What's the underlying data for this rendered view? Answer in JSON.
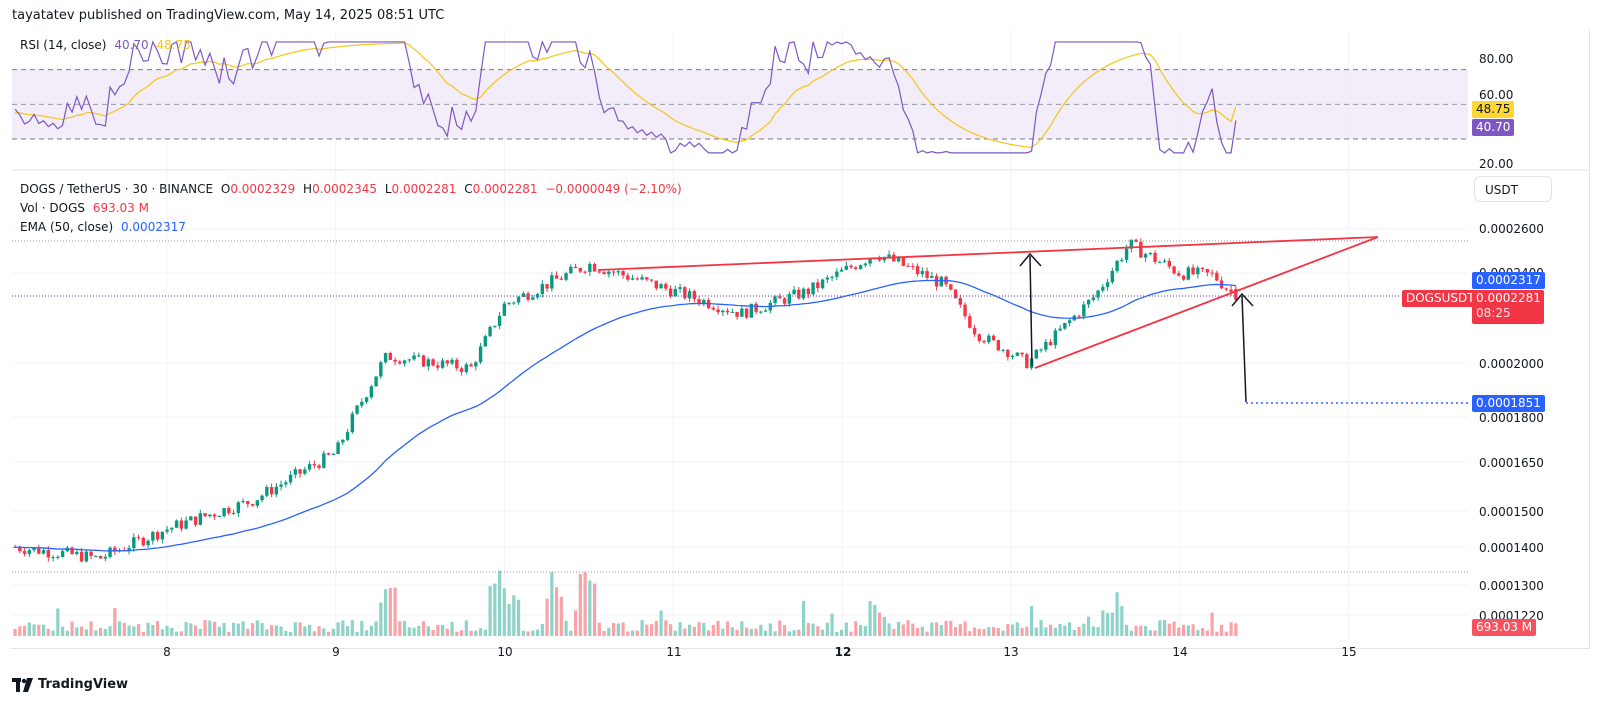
{
  "header": {
    "published": "tayatatev published on TradingView.com, May 14, 2025 08:51 UTC"
  },
  "rsi": {
    "label": "RSI (14, close)",
    "value": "40.70",
    "ma_value": "48.75",
    "axis": [
      "80.00",
      "60.00",
      "20.00"
    ],
    "tag_ma": "48.75",
    "tag_rsi": "40.70",
    "colors": {
      "rsi": "#7e57c2",
      "ma": "#f5c518",
      "band": "#ede7f6"
    }
  },
  "main": {
    "symbol": "DOGS / TetherUS · 30 · BINANCE",
    "ohlc": {
      "o_label": "O",
      "o": "0.0002329",
      "h_label": "H",
      "h": "0.0002345",
      "l_label": "L",
      "l": "0.0002281",
      "c_label": "C",
      "c": "0.0002281",
      "change": "−0.0000049 (−2.10%)"
    },
    "vol_label": "Vol · DOGS",
    "vol_value": "693.03 M",
    "ema_label": "EMA (50, close)",
    "ema_value": "0.0002317",
    "currency_button": "USDT",
    "price_axis": [
      "0.0002600",
      "0.0002400",
      "0.0002000",
      "0.0001800",
      "0.0001650",
      "0.0001500",
      "0.0001400",
      "0.0001300",
      "0.0001220"
    ],
    "tags": {
      "ema": "0.0002317",
      "symbol": "DOGSUSDT",
      "last_price": "0.0002281",
      "countdown": "08:25",
      "target": "0.0001851",
      "volume": "693.03 M"
    },
    "colors": {
      "up": "#089981",
      "down": "#f23645",
      "ema": "#2962ff",
      "trendline": "#f23645"
    }
  },
  "x_axis": [
    "8",
    "9",
    "10",
    "11",
    "12",
    "13",
    "14",
    "15"
  ],
  "footer": {
    "brand": "TradingView"
  },
  "chart_data": [
    {
      "type": "line",
      "title": "RSI (14, close)",
      "ylim": [
        15,
        90
      ],
      "bands": {
        "upper": 70,
        "middle": 50,
        "lower": 30
      },
      "series": [
        {
          "name": "RSI",
          "last": 40.7
        },
        {
          "name": "RSI MA",
          "last": 48.75
        }
      ],
      "x": [
        "8",
        "9",
        "10",
        "11",
        "12",
        "13",
        "14",
        "15"
      ]
    },
    {
      "type": "candlestick",
      "title": "DOGS / TetherUS · 30 · BINANCE",
      "ylabel": "USDT",
      "x": [
        "8",
        "9",
        "10",
        "11",
        "12",
        "13",
        "14",
        "15"
      ],
      "ylim": [
        0.000122,
        0.00027
      ],
      "approx_path": [
        {
          "day": "7.1",
          "price": 0.00014
        },
        {
          "day": "7.6",
          "price": 0.000137
        },
        {
          "day": "8.0",
          "price": 0.000145
        },
        {
          "day": "8.5",
          "price": 0.000153
        },
        {
          "day": "9.0",
          "price": 0.000168
        },
        {
          "day": "9.3",
          "price": 0.000203
        },
        {
          "day": "9.8",
          "price": 0.000198
        },
        {
          "day": "10.0",
          "price": 0.000226
        },
        {
          "day": "10.5",
          "price": 0.000244
        },
        {
          "day": "11.0",
          "price": 0.000232
        },
        {
          "day": "11.4",
          "price": 0.000222
        },
        {
          "day": "11.8",
          "price": 0.000232
        },
        {
          "day": "12.2",
          "price": 0.000249
        },
        {
          "day": "12.6",
          "price": 0.000235
        },
        {
          "day": "12.8",
          "price": 0.000213
        },
        {
          "day": "13.1",
          "price": 0.0002
        },
        {
          "day": "13.5",
          "price": 0.00023
        },
        {
          "day": "13.7",
          "price": 0.000253
        },
        {
          "day": "14.0",
          "price": 0.00024
        },
        {
          "day": "14.2",
          "price": 0.000239
        },
        {
          "day": "14.35",
          "price": 0.0002281
        }
      ],
      "ema50_last": 0.0002317,
      "annotations": [
        "Rising wedge: upper trendline from ~0.000243 (Day 10.5) to ~0.000257 (Day 15.2)",
        "Rising wedge: lower trendline from ~0.000200 (Day 13.1) to ~0.000257 (Day 15.2)",
        "Vertical arrow up from Day 13.1 low to upper trendline",
        "Vertical arrow down from breakdown point to target 0.0001851",
        "Dotted target line at 0.0001851"
      ],
      "volume_last": "693.03 M"
    }
  ]
}
